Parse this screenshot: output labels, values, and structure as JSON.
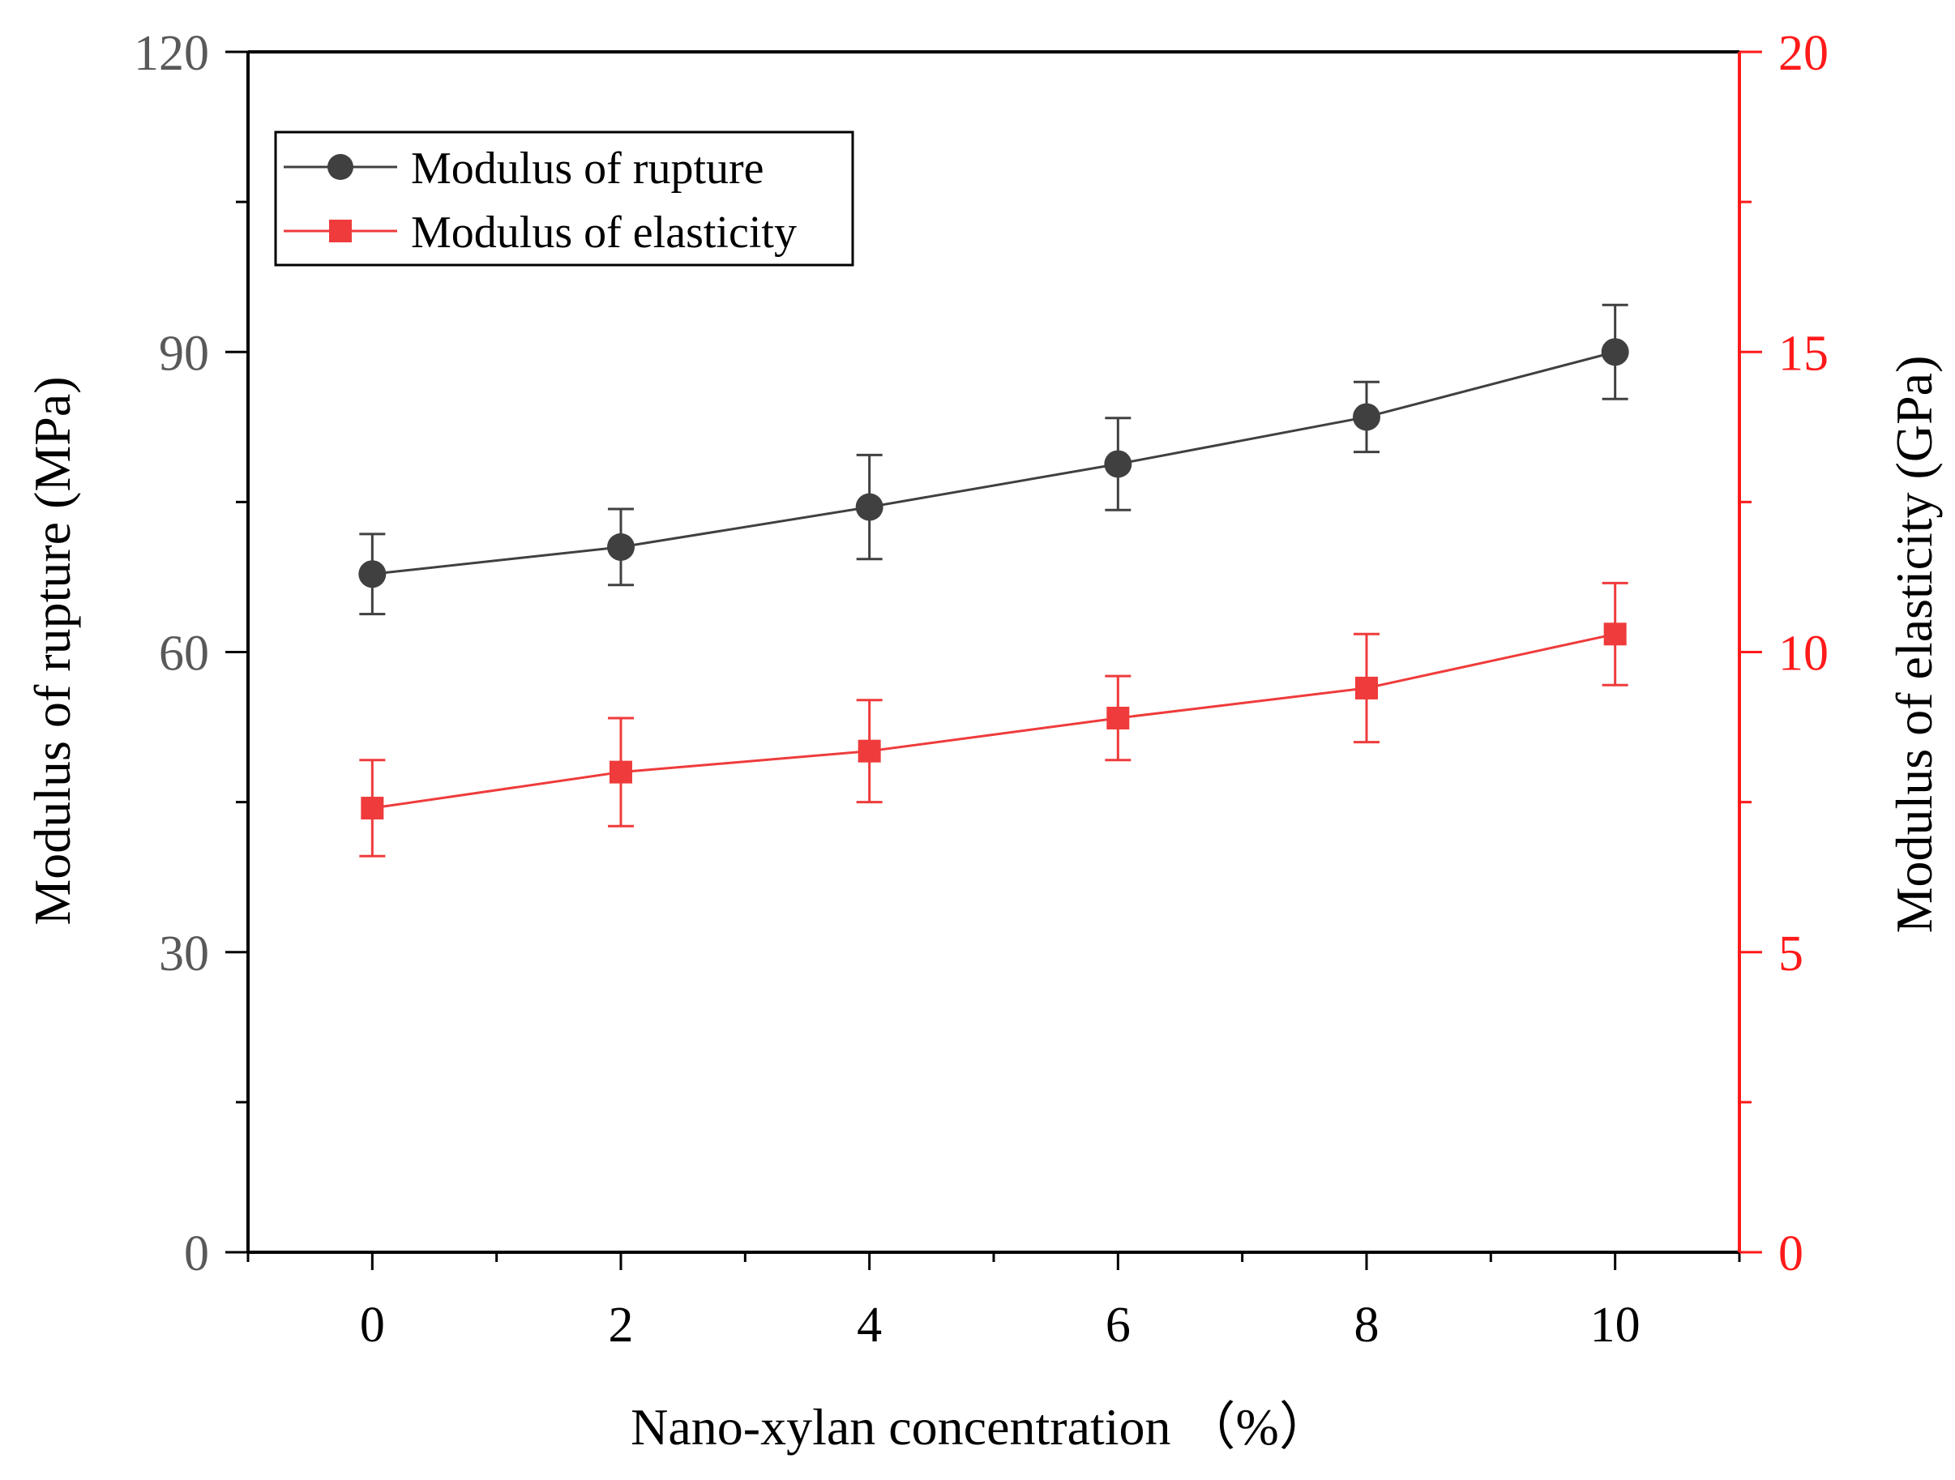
{
  "chart_data": {
    "type": "line",
    "x": [
      0,
      2,
      4,
      6,
      8,
      10
    ],
    "x_ticks": [
      "0",
      "2",
      "4",
      "6",
      "8",
      "10"
    ],
    "xlabel": "Nano-xylan concentration （%）",
    "xlim": [
      -1,
      11
    ],
    "y_left": {
      "label": "Modulus of rupture (MPa)",
      "ticks": [
        "0",
        "30",
        "60",
        "90",
        "120"
      ],
      "lim": [
        0,
        120
      ],
      "color": "#595959"
    },
    "y_right": {
      "label": "Modulus of elasticity (GPa)",
      "ticks": [
        "0",
        "5",
        "10",
        "15",
        "20"
      ],
      "lim": [
        0,
        20
      ],
      "color": "#ff1a1a"
    },
    "series": [
      {
        "name": "Modulus of rupture",
        "axis": "left",
        "color": "#404040",
        "marker": "circle",
        "values": [
          67.8,
          70.5,
          74.5,
          78.8,
          83.5,
          90.0
        ],
        "error": [
          4.0,
          3.8,
          5.2,
          4.6,
          3.5,
          4.7
        ]
      },
      {
        "name": "Modulus of elasticity",
        "axis": "right",
        "color": "#ef3b3b",
        "marker": "square",
        "values": [
          7.4,
          8.0,
          8.35,
          8.9,
          9.4,
          10.3
        ],
        "error": [
          0.8,
          0.9,
          0.85,
          0.7,
          0.9,
          0.85
        ]
      }
    ],
    "legend_position": "top-left",
    "grid": false
  }
}
